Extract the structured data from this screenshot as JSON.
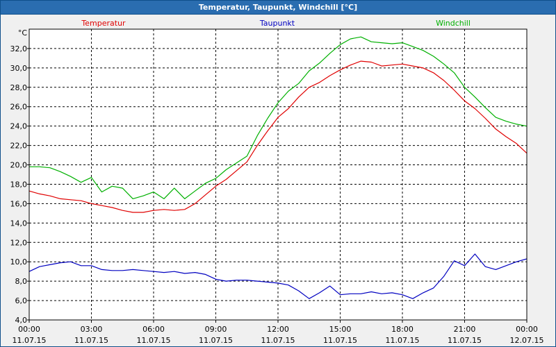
{
  "window": {
    "title": "Temperatur, Taupunkt, Windchill [°C]"
  },
  "colors": {
    "temperatur": "#e00000",
    "taupunkt": "#0000c0",
    "windchill": "#00b000",
    "grid": "#000000",
    "background": "#ffffff"
  },
  "chart_data": {
    "type": "line",
    "title": "Temperatur, Taupunkt, Windchill [°C]",
    "ylabel": "°C",
    "xlabel": "",
    "ylim": [
      4.0,
      34.0
    ],
    "yticks": [
      "4,0",
      "6,0",
      "8,0",
      "10,0",
      "12,0",
      "14,0",
      "16,0",
      "18,0",
      "20,0",
      "22,0",
      "24,0",
      "26,0",
      "28,0",
      "30,0",
      "32,0"
    ],
    "xlim_hours": [
      0,
      24
    ],
    "xticks": [
      {
        "time": "00:00",
        "date": "11.07.15"
      },
      {
        "time": "03:00",
        "date": "11.07.15"
      },
      {
        "time": "06:00",
        "date": "11.07.15"
      },
      {
        "time": "09:00",
        "date": "11.07.15"
      },
      {
        "time": "12:00",
        "date": "11.07.15"
      },
      {
        "time": "15:00",
        "date": "11.07.15"
      },
      {
        "time": "18:00",
        "date": "11.07.15"
      },
      {
        "time": "21:00",
        "date": "11.07.15"
      },
      {
        "time": "00:00",
        "date": "12.07.15"
      }
    ],
    "grid": true,
    "legend_position": "top",
    "series": [
      {
        "name": "Temperatur",
        "color": "#e00000",
        "x": [
          0,
          0.5,
          1,
          1.5,
          2,
          2.5,
          3,
          3.5,
          4,
          4.5,
          5,
          5.5,
          6,
          6.5,
          7,
          7.5,
          8,
          8.5,
          9,
          9.5,
          10,
          10.5,
          11,
          11.5,
          12,
          12.5,
          13,
          13.5,
          14,
          14.5,
          15,
          15.5,
          16,
          16.5,
          17,
          17.5,
          18,
          18.5,
          19,
          19.5,
          20,
          20.5,
          21,
          21.5,
          22,
          22.5,
          23,
          23.5,
          24
        ],
        "values": [
          17.3,
          17.0,
          16.8,
          16.5,
          16.4,
          16.3,
          16.0,
          15.8,
          15.6,
          15.3,
          15.1,
          15.1,
          15.3,
          15.4,
          15.3,
          15.4,
          16.0,
          16.9,
          17.8,
          18.5,
          19.4,
          20.3,
          22.0,
          23.5,
          24.9,
          25.8,
          27.0,
          28.0,
          28.5,
          29.2,
          29.8,
          30.3,
          30.7,
          30.6,
          30.2,
          30.3,
          30.4,
          30.2,
          30.0,
          29.5,
          28.7,
          27.7,
          26.6,
          25.8,
          24.8,
          23.7,
          22.9,
          22.2,
          21.2
        ]
      },
      {
        "name": "Taupunkt",
        "color": "#0000c0",
        "x": [
          0,
          0.5,
          1,
          1.5,
          2,
          2.5,
          3,
          3.5,
          4,
          4.5,
          5,
          5.5,
          6,
          6.5,
          7,
          7.5,
          8,
          8.5,
          9,
          9.5,
          10,
          10.5,
          11,
          11.5,
          12,
          12.5,
          13,
          13.5,
          14,
          14.5,
          15,
          15.5,
          16,
          16.5,
          17,
          17.5,
          18,
          18.5,
          19,
          19.5,
          20,
          20.5,
          21,
          21.5,
          22,
          22.5,
          23,
          23.5,
          24
        ],
        "values": [
          9.0,
          9.5,
          9.7,
          9.9,
          10.0,
          9.6,
          9.6,
          9.2,
          9.1,
          9.1,
          9.2,
          9.1,
          9.0,
          8.9,
          9.0,
          8.8,
          8.9,
          8.7,
          8.2,
          8.0,
          8.1,
          8.1,
          8.0,
          7.9,
          7.8,
          7.6,
          7.0,
          6.2,
          6.8,
          7.5,
          6.6,
          6.7,
          6.7,
          6.9,
          6.7,
          6.8,
          6.6,
          6.2,
          6.8,
          7.3,
          8.5,
          10.1,
          9.6,
          10.8,
          9.5,
          9.2,
          9.6,
          10.0,
          10.3
        ]
      },
      {
        "name": "Windchill",
        "color": "#00b000",
        "x": [
          0,
          0.5,
          1,
          1.5,
          2,
          2.5,
          3,
          3.5,
          4,
          4.5,
          5,
          5.5,
          6,
          6.5,
          7,
          7.5,
          8,
          8.5,
          9,
          9.5,
          10,
          10.5,
          11,
          11.5,
          12,
          12.5,
          13,
          13.5,
          14,
          14.5,
          15,
          15.5,
          16,
          16.5,
          17,
          17.5,
          18,
          18.5,
          19,
          19.5,
          20,
          20.5,
          21,
          21.5,
          22,
          22.5,
          23,
          23.5,
          24
        ],
        "values": [
          19.8,
          19.8,
          19.7,
          19.3,
          18.8,
          18.2,
          18.7,
          17.2,
          17.8,
          17.6,
          16.5,
          16.8,
          17.2,
          16.5,
          17.6,
          16.5,
          17.3,
          18.1,
          18.6,
          19.5,
          20.2,
          20.9,
          23.0,
          24.8,
          26.4,
          27.6,
          28.4,
          29.7,
          30.5,
          31.5,
          32.4,
          33.0,
          33.2,
          32.7,
          32.6,
          32.5,
          32.6,
          32.2,
          31.8,
          31.2,
          30.4,
          29.5,
          28.0,
          27.0,
          25.9,
          24.9,
          24.5,
          24.2,
          24.0
        ]
      }
    ]
  }
}
